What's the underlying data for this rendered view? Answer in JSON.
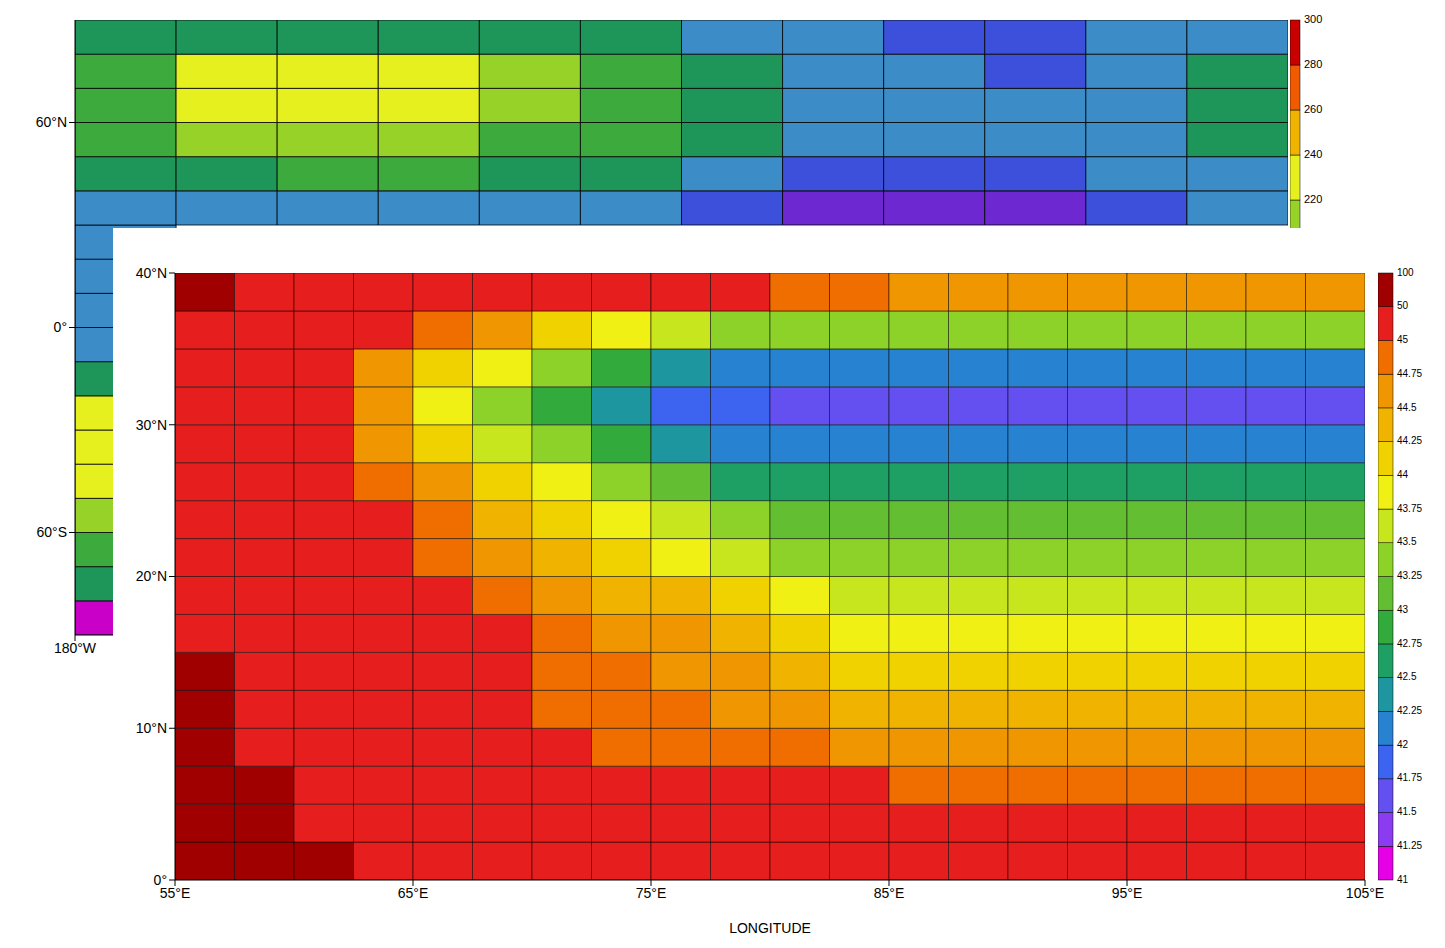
{
  "chart_data": [
    {
      "type": "heatmap",
      "x": [
        -165,
        -135,
        -105,
        -75,
        -45,
        -15,
        15,
        45,
        75,
        105,
        135,
        165
      ],
      "y": [
        -85,
        -75,
        -65,
        -55,
        -45,
        -35,
        -25,
        -15,
        -5,
        5,
        15,
        25,
        35,
        45,
        55,
        65,
        75,
        85
      ],
      "cells": [
        [
          155,
          null,
          null,
          null,
          null,
          null,
          null,
          null,
          null,
          null,
          null,
          null
        ],
        [
          195,
          null,
          null,
          null,
          null,
          null,
          null,
          null,
          null,
          null,
          null,
          null
        ],
        [
          205,
          null,
          null,
          null,
          null,
          null,
          null,
          null,
          null,
          null,
          null,
          null
        ],
        [
          215,
          null,
          null,
          null,
          null,
          null,
          null,
          null,
          null,
          null,
          null,
          null
        ],
        [
          225,
          null,
          null,
          null,
          null,
          null,
          null,
          null,
          null,
          null,
          null,
          null
        ],
        [
          235,
          null,
          null,
          null,
          null,
          null,
          null,
          null,
          null,
          null,
          null,
          null
        ],
        [
          225,
          null,
          null,
          null,
          null,
          null,
          null,
          null,
          null,
          null,
          null,
          null
        ],
        [
          195,
          null,
          null,
          null,
          null,
          null,
          null,
          null,
          null,
          null,
          null,
          null
        ],
        [
          185,
          null,
          null,
          null,
          null,
          null,
          null,
          null,
          null,
          null,
          null,
          null
        ],
        [
          185,
          null,
          null,
          null,
          null,
          null,
          null,
          null,
          null,
          null,
          null,
          null
        ],
        [
          185,
          null,
          null,
          null,
          null,
          null,
          null,
          null,
          null,
          null,
          null,
          null
        ],
        [
          185,
          null,
          null,
          null,
          null,
          null,
          null,
          null,
          null,
          null,
          null,
          null
        ],
        [
          185,
          185,
          185,
          185,
          185,
          185,
          175,
          165,
          165,
          165,
          175,
          185
        ],
        [
          195,
          195,
          205,
          205,
          195,
          195,
          185,
          175,
          175,
          175,
          185,
          185
        ],
        [
          205,
          215,
          215,
          215,
          205,
          205,
          195,
          185,
          185,
          185,
          185,
          195
        ],
        [
          205,
          225,
          225,
          225,
          215,
          205,
          195,
          185,
          185,
          180,
          185,
          195
        ],
        [
          205,
          225,
          225,
          225,
          215,
          205,
          195,
          185,
          180,
          175,
          180,
          190
        ],
        [
          195,
          195,
          195,
          195,
          195,
          195,
          185,
          180,
          175,
          175,
          180,
          185
        ]
      ],
      "xlim": [
        -180,
        180
      ],
      "ylim": [
        -90,
        90
      ],
      "xticks": [
        {
          "value": -180,
          "label": "180°W"
        }
      ],
      "yticks": [
        {
          "value": -60,
          "label": "60°S"
        },
        {
          "value": 0,
          "label": "0°"
        },
        {
          "value": 60,
          "label": "60°N"
        }
      ],
      "colorbar": {
        "levels": [
          150,
          160,
          170,
          180,
          190,
          200,
          210,
          220,
          240,
          260,
          280,
          300
        ],
        "colors": [
          "#c800c8",
          "#6e28d2",
          "#3c50dc",
          "#3c8cc8",
          "#1e965a",
          "#3caa3c",
          "#96d228",
          "#e6f01e",
          "#f0b400",
          "#f05a00",
          "#c80000"
        ],
        "ticks": [
          220,
          240,
          260,
          280,
          300
        ]
      }
    },
    {
      "type": "heatmap",
      "xlabel": "LONGITUDE",
      "x": [
        56.25,
        58.75,
        61.25,
        63.75,
        66.25,
        68.75,
        71.25,
        73.75,
        76.25,
        78.75,
        81.25,
        83.75,
        86.25,
        88.75,
        91.25,
        93.75,
        96.25,
        98.75,
        101.25,
        103.75
      ],
      "y": [
        1.25,
        3.75,
        6.25,
        8.75,
        11.25,
        13.75,
        16.25,
        18.75,
        21.25,
        23.75,
        26.25,
        28.75,
        31.25,
        33.75,
        36.25,
        38.75
      ],
      "cells": [
        [
          60,
          60,
          60,
          47,
          47,
          47,
          47,
          47,
          47,
          47,
          47,
          47,
          47,
          47,
          47,
          47,
          47,
          47,
          47,
          47
        ],
        [
          60,
          60,
          47,
          47,
          47,
          47,
          47,
          47,
          47,
          47,
          47,
          46,
          46,
          46,
          45.5,
          45.5,
          45.5,
          45.5,
          45.5,
          45.5
        ],
        [
          60,
          60,
          47,
          47,
          47,
          47,
          47,
          47,
          47,
          46,
          46,
          45.5,
          44.95,
          44.9,
          44.85,
          44.85,
          44.85,
          44.85,
          44.85,
          44.85
        ],
        [
          60,
          47,
          47,
          47,
          47,
          47,
          47,
          44.98,
          44.92,
          44.86,
          44.79,
          44.73,
          44.67,
          44.6,
          44.6,
          44.6,
          44.6,
          44.6,
          44.6,
          44.6
        ],
        [
          60,
          47,
          47,
          47,
          47,
          47,
          44.99,
          44.89,
          44.79,
          44.69,
          44.58,
          44.48,
          44.38,
          44.35,
          44.35,
          44.35,
          44.35,
          44.35,
          44.35,
          44.35
        ],
        [
          60,
          47,
          47,
          47,
          47,
          47,
          44.93,
          44.79,
          44.65,
          44.51,
          44.37,
          44.23,
          44.1,
          44.1,
          44.1,
          44.1,
          44.1,
          44.1,
          44.1,
          44.1
        ],
        [
          47,
          47,
          47,
          47,
          47,
          47,
          44.85,
          44.67,
          44.5,
          44.33,
          44.16,
          43.99,
          43.9,
          43.9,
          43.9,
          43.9,
          43.9,
          43.9,
          43.9,
          43.9
        ],
        [
          47,
          47,
          47,
          47,
          47,
          44.9,
          44.7,
          44.49,
          44.29,
          44.09,
          43.88,
          43.7,
          43.7,
          43.7,
          43.7,
          43.7,
          43.7,
          43.7,
          43.7,
          43.7
        ],
        [
          47,
          47,
          47,
          47,
          44.97,
          44.72,
          44.48,
          44.23,
          43.97,
          43.72,
          43.48,
          43.4,
          43.4,
          43.4,
          43.4,
          43.4,
          43.4,
          43.4,
          43.4,
          43.4
        ],
        [
          47,
          47,
          47,
          46,
          44.79,
          44.49,
          44.2,
          43.9,
          43.61,
          43.31,
          43.1,
          43.1,
          43.1,
          43.1,
          43.1,
          43.1,
          43.1,
          43.1,
          43.1,
          43.1
        ],
        [
          47,
          47,
          47,
          44.89,
          44.51,
          44.14,
          43.76,
          43.39,
          43.01,
          42.64,
          42.6,
          42.6,
          42.6,
          42.6,
          42.6,
          42.6,
          42.6,
          42.6,
          42.6,
          42.6
        ],
        [
          47,
          47,
          47,
          44.67,
          44.2,
          43.73,
          43.27,
          42.8,
          42.33,
          42,
          42,
          42,
          42,
          42,
          42,
          42,
          42,
          42,
          42,
          42
        ],
        [
          47,
          47,
          47,
          44.52,
          43.99,
          43.46,
          42.93,
          42.4,
          41.87,
          41.8,
          41.7,
          41.6,
          41.6,
          41.6,
          41.6,
          41.6,
          41.6,
          41.6,
          41.6,
          41.6
        ],
        [
          47,
          47,
          47,
          44.68,
          44.23,
          43.78,
          43.32,
          42.87,
          42.42,
          42.1,
          42.1,
          42.1,
          42.1,
          42.1,
          42.1,
          42.1,
          42.1,
          42.1,
          42.1,
          42.1
        ],
        [
          47,
          47,
          47,
          46,
          44.76,
          44.5,
          44.23,
          43.96,
          43.7,
          43.43,
          43.3,
          43.3,
          43.3,
          43.3,
          43.3,
          43.3,
          43.3,
          43.3,
          43.3,
          43.3
        ],
        [
          60,
          47,
          47,
          47,
          47,
          47,
          47,
          47,
          46,
          45.5,
          44.9,
          44.8,
          44.7,
          44.7,
          44.6,
          44.6,
          44.6,
          44.6,
          44.6,
          44.6
        ]
      ],
      "xlim": [
        55,
        105
      ],
      "ylim": [
        0,
        40
      ],
      "xticks": [
        {
          "value": 55,
          "label": "55°E"
        },
        {
          "value": 65,
          "label": "65°E"
        },
        {
          "value": 75,
          "label": "75°E"
        },
        {
          "value": 85,
          "label": "85°E"
        },
        {
          "value": 95,
          "label": "95°E"
        },
        {
          "value": 105,
          "label": "105°E"
        }
      ],
      "yticks": [
        {
          "value": 0,
          "label": "0°"
        },
        {
          "value": 10,
          "label": "10°N"
        },
        {
          "value": 20,
          "label": "20°N"
        },
        {
          "value": 30,
          "label": "30°N"
        },
        {
          "value": 40,
          "label": "40°N"
        }
      ],
      "colorbar": {
        "ticks": [
          41,
          41.25,
          41.5,
          41.75,
          42,
          42.25,
          42.5,
          42.75,
          43,
          43.25,
          43.5,
          43.75,
          44,
          44.25,
          44.5,
          44.75,
          45,
          50,
          100
        ],
        "colors": [
          "#e600e6",
          "#8c3cf0",
          "#6450f0",
          "#3c64f0",
          "#2882d2",
          "#1e96a0",
          "#1ea064",
          "#32aa3c",
          "#64be32",
          "#8cd228",
          "#c8e61e",
          "#f0f014",
          "#f0d200",
          "#f0b400",
          "#f09600",
          "#f06e00",
          "#e61e1e",
          "#a00000"
        ]
      }
    }
  ]
}
